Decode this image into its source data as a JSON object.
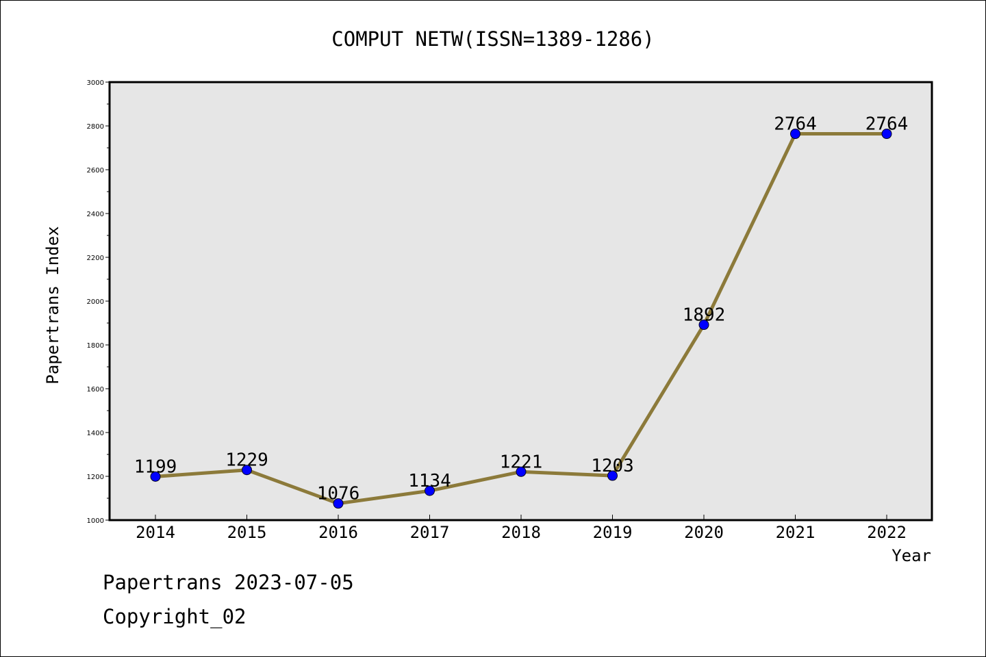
{
  "chart_data": {
    "type": "line",
    "title": "COMPUT NETW(ISSN=1389-1286)",
    "xlabel": "Year",
    "ylabel": "Papertrans Index",
    "categories": [
      "2014",
      "2015",
      "2016",
      "2017",
      "2018",
      "2019",
      "2020",
      "2021",
      "2022"
    ],
    "series": [
      {
        "values": [
          1199,
          1229,
          1076,
          1134,
          1221,
          1203,
          1892,
          2764,
          2764
        ],
        "labels": [
          "1199",
          "1229",
          "1076",
          "1134",
          "1221",
          "1203",
          "1892",
          "2764",
          "2764"
        ],
        "line_color": "#8c7a3a",
        "marker_color": "#0000ff"
      }
    ],
    "ylim": [
      1000,
      3000
    ],
    "yticks": [
      "1000",
      "1200",
      "1400",
      "1600",
      "1800",
      "2000",
      "2200",
      "2400",
      "2600",
      "2800",
      "3000"
    ],
    "grid": false,
    "plot_background": "#e6e6e6"
  },
  "footer": {
    "date_text": "Papertrans 2023-07-05",
    "copyright_text": "Copyright_02"
  }
}
